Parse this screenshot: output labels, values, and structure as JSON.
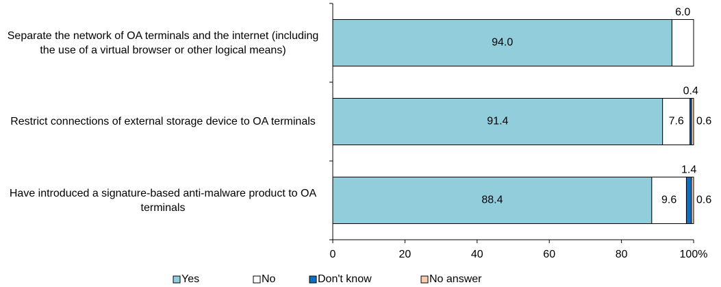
{
  "chart_data": {
    "type": "stacked-bar",
    "orientation": "horizontal",
    "categories": [
      "Separate the network of OA terminals and the internet (including the use of a virtual browser or other logical means)",
      "Restrict connections of external storage device to OA terminals",
      "Have introduced a signature-based anti-malware product to OA terminals"
    ],
    "series": [
      {
        "name": "Yes",
        "color": "#92cddc",
        "values": [
          94.0,
          91.4,
          88.4
        ],
        "value_labels": [
          "94.0",
          "91.4",
          "88.4"
        ]
      },
      {
        "name": "No",
        "color": "#ffffff",
        "values": [
          6.0,
          7.6,
          9.6
        ],
        "value_labels": [
          "6.0",
          "7.6",
          "9.6"
        ]
      },
      {
        "name": "Don't know",
        "color": "#0f6ec0",
        "values": [
          0,
          0.4,
          1.4
        ],
        "value_labels": [
          null,
          "0.4",
          "1.4"
        ]
      },
      {
        "name": "No answer",
        "color": "#f8cbad",
        "values": [
          0,
          0.6,
          0.6
        ],
        "value_labels": [
          null,
          "0.6",
          "0.6"
        ]
      }
    ],
    "xlim": [
      0,
      100
    ],
    "xticks": [
      0,
      20,
      40,
      60,
      80,
      {
        "value": 100,
        "label": "100%"
      }
    ],
    "legend": "bottom"
  }
}
